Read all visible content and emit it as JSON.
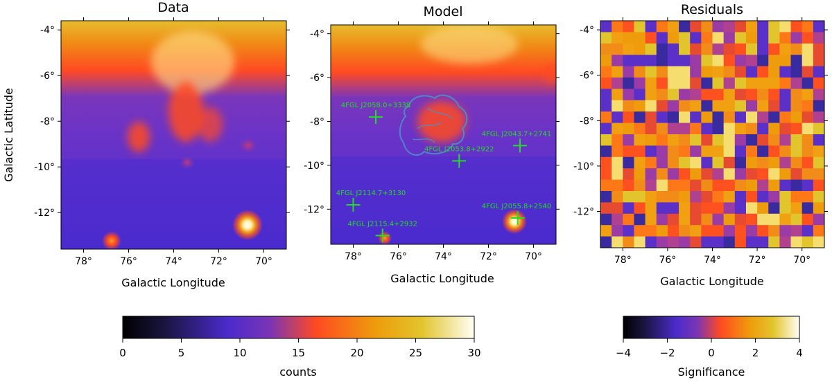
{
  "chart_data": [
    {
      "type": "heatmap",
      "title": "Data",
      "xlabel": "Galactic Longitude",
      "ylabel": "Galactic Latitude",
      "xlim": [
        79,
        69
      ],
      "ylim": [
        -13.6,
        -3.6
      ],
      "x_ticks": [
        "78°",
        "76°",
        "74°",
        "72°",
        "70°"
      ],
      "y_ticks": [
        "-4°",
        "-6°",
        "-8°",
        "-10°",
        "-12°"
      ],
      "colorscale": "counts",
      "hotspots": [
        {
          "l": 70.7,
          "b": -12.5,
          "counts": 30
        },
        {
          "l": 76.7,
          "b": -13.2,
          "counts": 22
        },
        {
          "l": 75.6,
          "b": -8.9,
          "counts": 17
        },
        {
          "l": 70.9,
          "b": -9.0,
          "counts": 14
        }
      ]
    },
    {
      "type": "heatmap",
      "title": "Model",
      "xlabel": "Galactic Longitude",
      "ylabel": "",
      "xlim": [
        79,
        69
      ],
      "ylim": [
        -13.6,
        -3.6
      ],
      "x_ticks": [
        "78°",
        "76°",
        "74°",
        "72°",
        "70°"
      ],
      "y_ticks": [
        "-4°",
        "-6°",
        "-8°",
        "-10°",
        "-12°"
      ],
      "colorscale": "counts",
      "sources": [
        {
          "name": "4FGL J2058.0+3338",
          "l": 77.0,
          "b": -7.8
        },
        {
          "name": "4FGL J2053.8+2922",
          "l": 73.3,
          "b": -9.8
        },
        {
          "name": "4FGL J2043.7+2741",
          "l": 70.6,
          "b": -9.1
        },
        {
          "name": "4FGL J2114.7+3130",
          "l": 78.0,
          "b": -11.8
        },
        {
          "name": "4FGL J2055.8+2540",
          "l": 70.7,
          "b": -12.4
        },
        {
          "name": "4FGL J2115.4+2932",
          "l": 76.7,
          "b": -13.2
        }
      ]
    },
    {
      "type": "heatmap",
      "title": "Residuals",
      "xlabel": "Galactic Longitude",
      "ylabel": "",
      "xlim": [
        79,
        69
      ],
      "ylim": [
        -13.6,
        -3.6
      ],
      "x_ticks": [
        "78°",
        "76°",
        "74°",
        "72°",
        "70°"
      ],
      "y_ticks": [
        "-4°",
        "-6°",
        "-8°",
        "-10°",
        "-12°"
      ],
      "colorscale": "Significance",
      "grid_size": [
        20,
        20
      ]
    }
  ],
  "colorbars": [
    {
      "label": "counts",
      "min": 0,
      "max": 30,
      "ticks": [
        "0",
        "5",
        "10",
        "15",
        "20",
        "25",
        "30"
      ],
      "colormap": "CMRmap-like"
    },
    {
      "label": "Significance",
      "min": -4,
      "max": 4,
      "ticks": [
        "−4",
        "−2",
        "0",
        "2",
        "4"
      ],
      "colormap": "CMRmap-like"
    }
  ]
}
